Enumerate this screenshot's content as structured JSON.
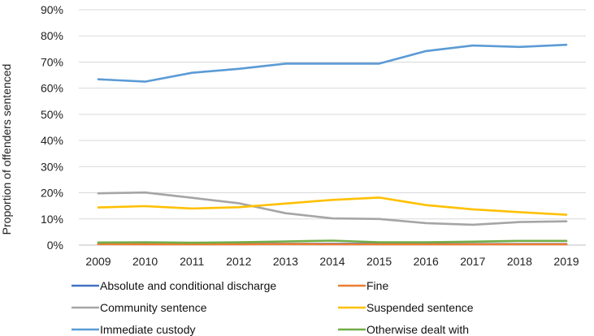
{
  "chart_data": {
    "type": "line",
    "title": "",
    "xlabel": "",
    "ylabel": "Proportion of offenders sentenced",
    "ylim": [
      0,
      90
    ],
    "yticks": [
      0,
      10,
      20,
      30,
      40,
      50,
      60,
      70,
      80,
      90
    ],
    "ytick_labels": [
      "0%",
      "10%",
      "20%",
      "30%",
      "40%",
      "50%",
      "60%",
      "70%",
      "80%",
      "90%"
    ],
    "categories": [
      "2009",
      "2010",
      "2011",
      "2012",
      "2013",
      "2014",
      "2015",
      "2016",
      "2017",
      "2018",
      "2019"
    ],
    "grid": "horizontal",
    "legend_position": "bottom",
    "series": [
      {
        "name": "Absolute and conditional discharge",
        "color": "#4472C4",
        "values": [
          0.6,
          0.6,
          0.5,
          0.5,
          0.5,
          0.5,
          0.5,
          0.4,
          0.4,
          0.4,
          0.4
        ]
      },
      {
        "name": "Fine",
        "color": "#ED7D31",
        "values": [
          0.4,
          0.3,
          0.3,
          0.3,
          0.4,
          0.3,
          0.3,
          0.3,
          0.3,
          0.3,
          0.3
        ]
      },
      {
        "name": "Community sentence",
        "color": "#A5A5A5",
        "values": [
          19.8,
          20.1,
          18.1,
          16.0,
          12.2,
          10.2,
          10.0,
          8.4,
          7.8,
          8.8,
          9.1
        ]
      },
      {
        "name": "Suspended sentence",
        "color": "#FFC000",
        "values": [
          14.4,
          14.9,
          14.0,
          14.5,
          15.9,
          17.3,
          18.2,
          15.3,
          13.7,
          12.6,
          11.6
        ]
      },
      {
        "name": "Immediate custody",
        "color": "#5B9BD5",
        "values": [
          63.4,
          62.5,
          65.9,
          67.4,
          69.4,
          69.4,
          69.4,
          74.2,
          76.3,
          75.8,
          76.6
        ]
      },
      {
        "name": "Otherwise dealt with",
        "color": "#70AD47",
        "values": [
          1.0,
          1.1,
          0.9,
          1.1,
          1.4,
          1.7,
          1.1,
          1.1,
          1.3,
          1.6,
          1.6
        ]
      }
    ]
  }
}
